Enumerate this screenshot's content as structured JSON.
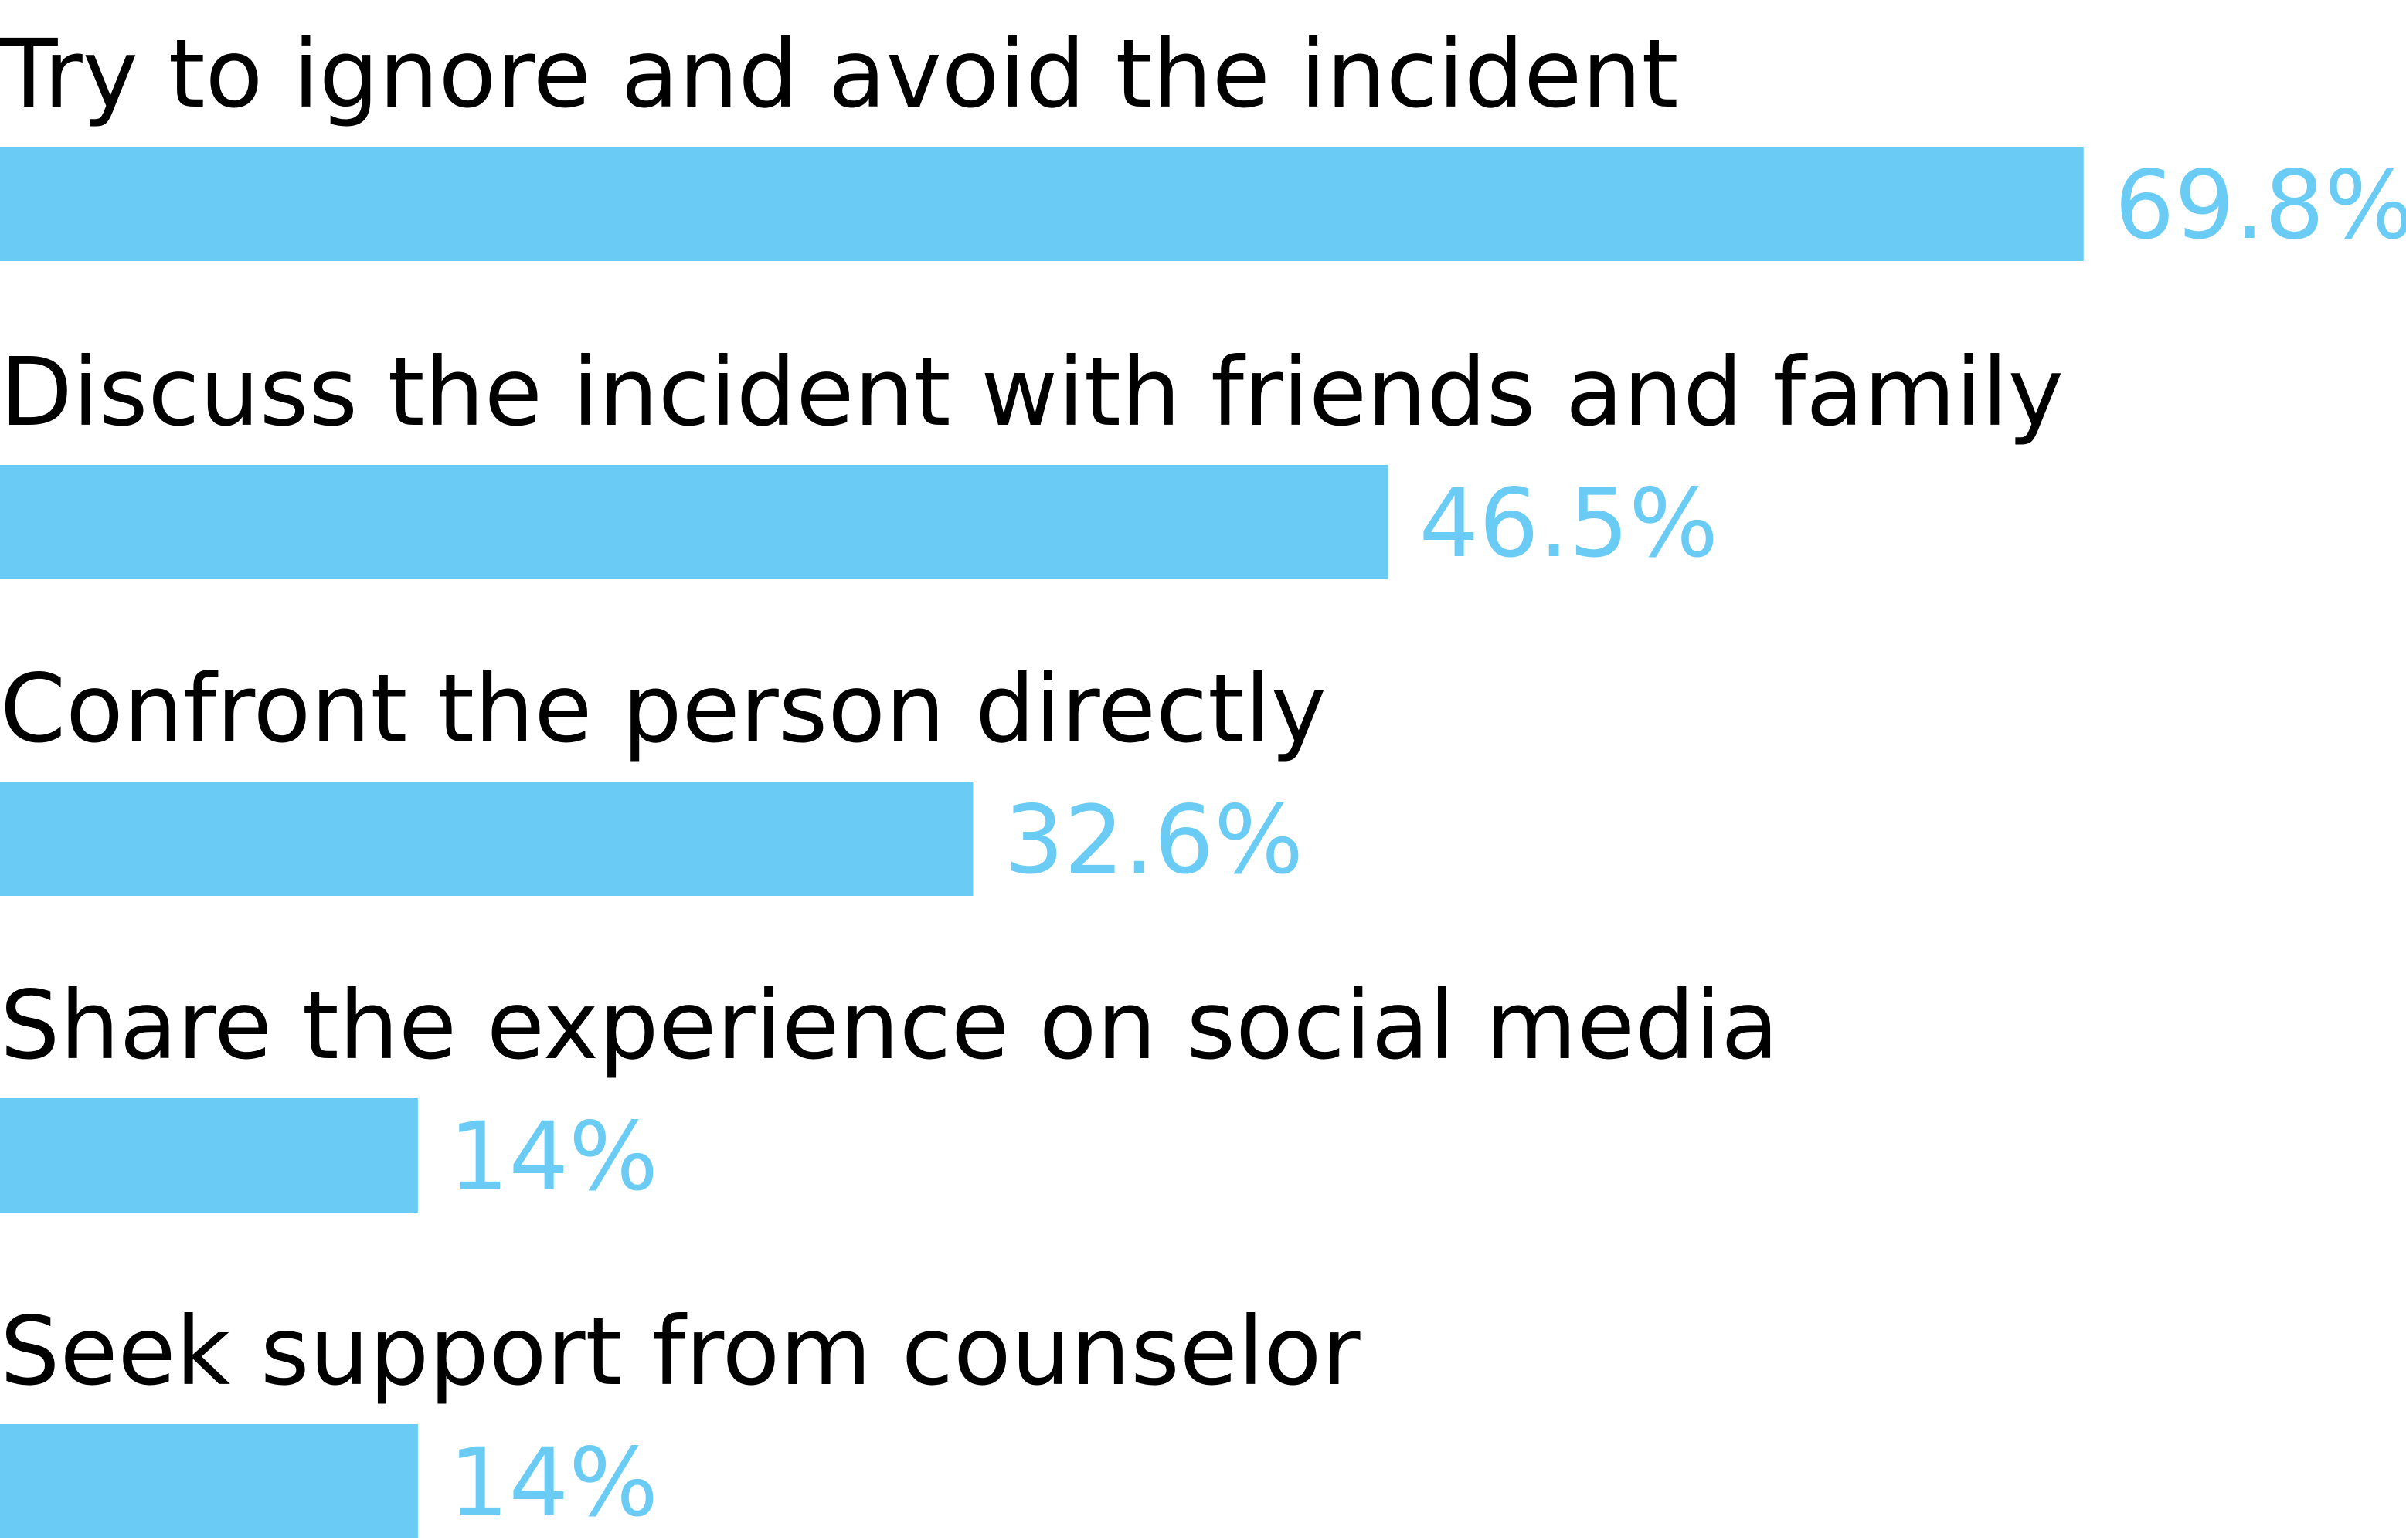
{
  "chart_data": {
    "type": "bar",
    "orientation": "horizontal",
    "categories": [
      "Try to ignore and avoid the incident",
      "Discuss the incident with friends and family",
      "Confront the person directly",
      "Share the experience on social media",
      "Seek support from counselor"
    ],
    "values": [
      69.8,
      46.5,
      32.6,
      14,
      14
    ],
    "value_labels": [
      "69.8%",
      "46.5%",
      "32.6%",
      "14%",
      "14%"
    ],
    "title": "",
    "xlabel": "",
    "ylabel": "",
    "xlim": [
      0,
      80.6
    ],
    "grid": false,
    "legend": "none",
    "colors": {
      "bar": "#6ACCF4",
      "value_text": "#6ACCF4",
      "label_text": "#000000"
    }
  }
}
